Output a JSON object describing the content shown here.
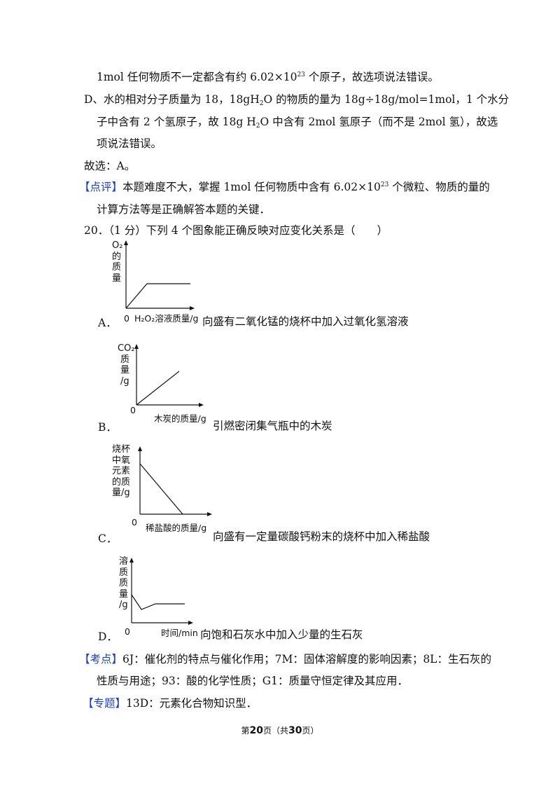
{
  "lines": {
    "l1a": "1mol 任何物质不一定都含有约 6.02×10",
    "l1sup": "23",
    "l1b": " 个原子，故选项说法错误。",
    "d1a": "D、水的相对分子质量为 18，18gH",
    "d1sub": "2",
    "d1b": "O 的物质的量为 18g÷18g/mol=1mol，1 个水分",
    "d2": "子中含有 2 个氢原子，故 18g  H",
    "d2sub": "2",
    "d2b": "O 中含有 2mol 氢原子（而不是 2mol 氢），故选",
    "d3": "项说法错误。",
    "answer": "故选：A。",
    "comment_tag": "【点评】",
    "comment_a": "本题难度不大，掌握 1mol 任何物质中含有 6.02×10",
    "comment_sup": "23",
    "comment_b": " 个微粒、物质的量的",
    "comment2": "计算方法等是正确解答本题的关键．",
    "q20": "20．（1 分）下列 4 个图象能正确反映对应变化关系是（　　）"
  },
  "options": {
    "A": {
      "letter": "A．",
      "text": "向盛有二氧化锰的烧杯中加入过氧化氢溶液",
      "ylabel": [
        "O₂",
        "的",
        "质",
        "量"
      ],
      "xlabel": "H₂O₂溶液质量/g",
      "origin": "0"
    },
    "B": {
      "letter": "B．",
      "text": "引燃密闭集气瓶中的木炭",
      "ylabel": [
        "CO₂",
        "质",
        "量",
        "/g"
      ],
      "xlabel": "木炭的质量/g",
      "origin": "0"
    },
    "C": {
      "letter": "C．",
      "text": "向盛有一定量碳酸钙粉末的烧杯中加入稀盐酸",
      "ylabel": [
        "烧杯",
        "中氧",
        "元素",
        "的质",
        "量/g"
      ],
      "xlabel": "稀盐酸的质量/g",
      "origin": "0"
    },
    "D": {
      "letter": "D．",
      "text": "向饱和石灰水中加入少量的生石灰",
      "ylabel": [
        "溶",
        "质",
        "质",
        "量",
        "/g"
      ],
      "xlabel": "时间/min",
      "origin": "0"
    }
  },
  "kaodian": {
    "tag": "【考点】",
    "text1": "6J：催化剂的特点与催化作用；7M：固体溶解度的影响因素；8L：生石灰的",
    "text2": "性质与用途；93：酸的化学性质；G1：质量守恒定律及其应用．"
  },
  "zhuanti": {
    "tag": "【专题】",
    "text": "13D：元素化合物知识型．"
  },
  "footer": {
    "pre": "第",
    "page": "20",
    "mid": "页（共",
    "total": "30",
    "post": "页）"
  }
}
